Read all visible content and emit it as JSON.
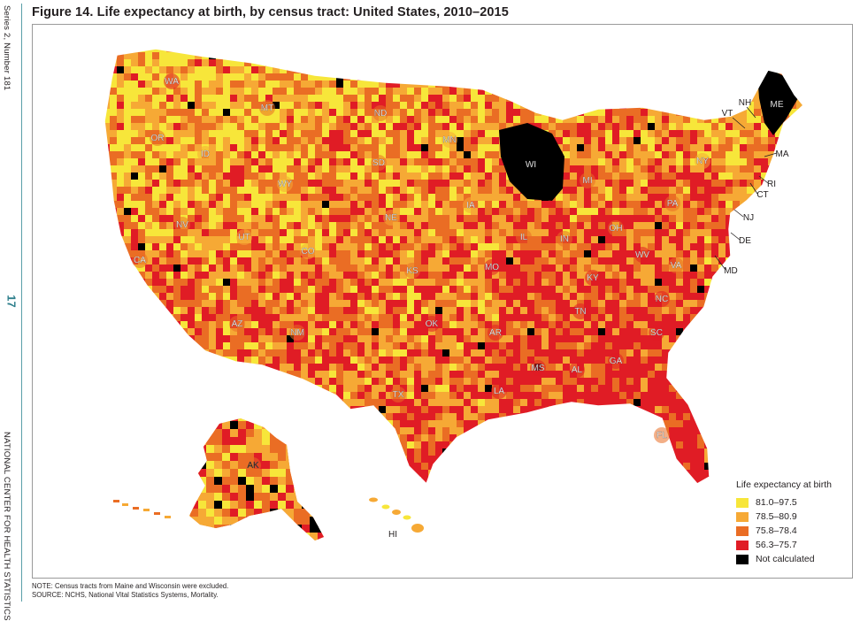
{
  "side": {
    "series": "Series 2, Number 181",
    "page": "17",
    "agency": "NATIONAL CENTER FOR HEALTH STATISTICS"
  },
  "title": "Figure 14. Life expectancy at birth, by census tract: United States, 2010–2015",
  "legend": {
    "title": "Life expectancy at birth",
    "items": [
      {
        "label": "81.0–97.5",
        "color": "#f7e63a"
      },
      {
        "label": "78.5–80.9",
        "color": "#f6a935"
      },
      {
        "label": "75.8–78.4",
        "color": "#ea6d24"
      },
      {
        "label": "56.3–75.7",
        "color": "#e01c25"
      },
      {
        "label": "Not calculated",
        "color": "#000000"
      }
    ]
  },
  "states": [
    {
      "abbr": "WA",
      "c": 3
    },
    {
      "abbr": "OR",
      "c": 2
    },
    {
      "abbr": "CA",
      "c": 2
    },
    {
      "abbr": "ID",
      "c": 1
    },
    {
      "abbr": "NV",
      "c": 2
    },
    {
      "abbr": "MT",
      "c": 2
    },
    {
      "abbr": "WY",
      "c": 1
    },
    {
      "abbr": "UT",
      "c": 1
    },
    {
      "abbr": "AZ",
      "c": 2
    },
    {
      "abbr": "CO",
      "c": 1
    },
    {
      "abbr": "NM",
      "c": 2
    },
    {
      "abbr": "ND",
      "c": 2
    },
    {
      "abbr": "SD",
      "c": 2
    },
    {
      "abbr": "NE",
      "c": 1
    },
    {
      "abbr": "KS",
      "c": 2
    },
    {
      "abbr": "OK",
      "c": 3
    },
    {
      "abbr": "TX",
      "c": 2
    },
    {
      "abbr": "MN",
      "c": 1
    },
    {
      "abbr": "IA",
      "c": 1
    },
    {
      "abbr": "MO",
      "c": 3
    },
    {
      "abbr": "AR",
      "c": 3
    },
    {
      "abbr": "LA",
      "c": 3
    },
    {
      "abbr": "WI",
      "c": 4
    },
    {
      "abbr": "IL",
      "c": 2
    },
    {
      "abbr": "MS",
      "c": 3
    },
    {
      "abbr": "MI",
      "c": 2
    },
    {
      "abbr": "IN",
      "c": 2
    },
    {
      "abbr": "KY",
      "c": 3
    },
    {
      "abbr": "TN",
      "c": 3
    },
    {
      "abbr": "AL",
      "c": 3
    },
    {
      "abbr": "OH",
      "c": 2
    },
    {
      "abbr": "GA",
      "c": 3
    },
    {
      "abbr": "FL",
      "c": 2
    },
    {
      "abbr": "SC",
      "c": 3
    },
    {
      "abbr": "NC",
      "c": 3
    },
    {
      "abbr": "VA",
      "c": 2
    },
    {
      "abbr": "WV",
      "c": 3
    },
    {
      "abbr": "PA",
      "c": 2
    },
    {
      "abbr": "NY",
      "c": 1
    },
    {
      "abbr": "VT",
      "c": 1
    },
    {
      "abbr": "NH",
      "c": 1
    },
    {
      "abbr": "ME",
      "c": 4
    },
    {
      "abbr": "MA",
      "c": 1
    },
    {
      "abbr": "RI",
      "c": 1
    },
    {
      "abbr": "CT",
      "c": 1
    },
    {
      "abbr": "NJ",
      "c": 1
    },
    {
      "abbr": "DE",
      "c": 2
    },
    {
      "abbr": "MD",
      "c": 2
    },
    {
      "abbr": "AK",
      "c": 2
    },
    {
      "abbr": "HI",
      "c": 1
    }
  ],
  "notes": {
    "note": "NOTE: Census tracts from Maine and Wisconsin were excluded.",
    "source": "SOURCE: NCHS, National Vital Statistics Systems, Mortality."
  }
}
